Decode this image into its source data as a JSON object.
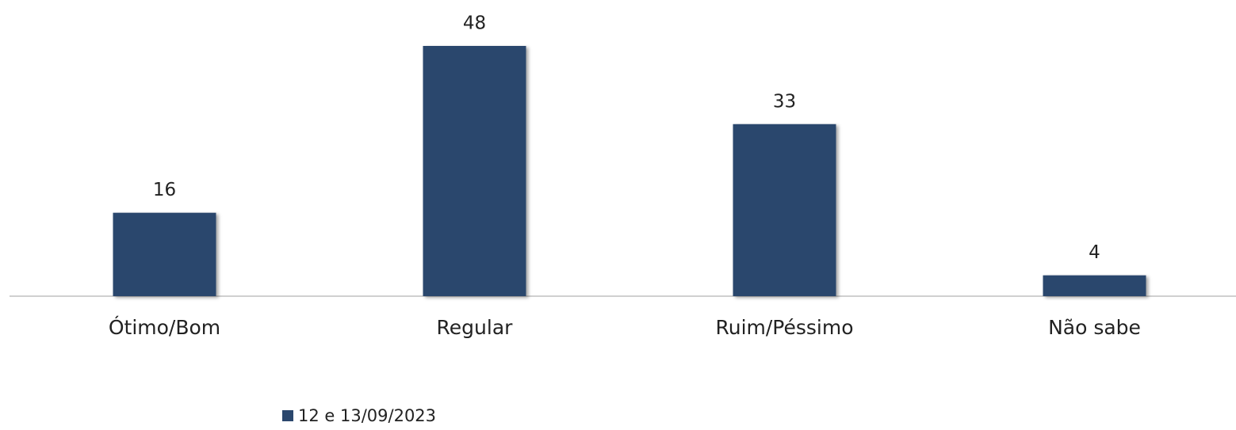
{
  "chart_data": {
    "type": "bar",
    "categories": [
      "Ótimo/Bom",
      "Regular",
      "Ruim/Péssimo",
      "Não sabe"
    ],
    "series": [
      {
        "name": "12 e 13/09/2023",
        "color": "#2b476d",
        "values": [
          16,
          48,
          33,
          4
        ]
      }
    ],
    "legend": "bottom"
  }
}
